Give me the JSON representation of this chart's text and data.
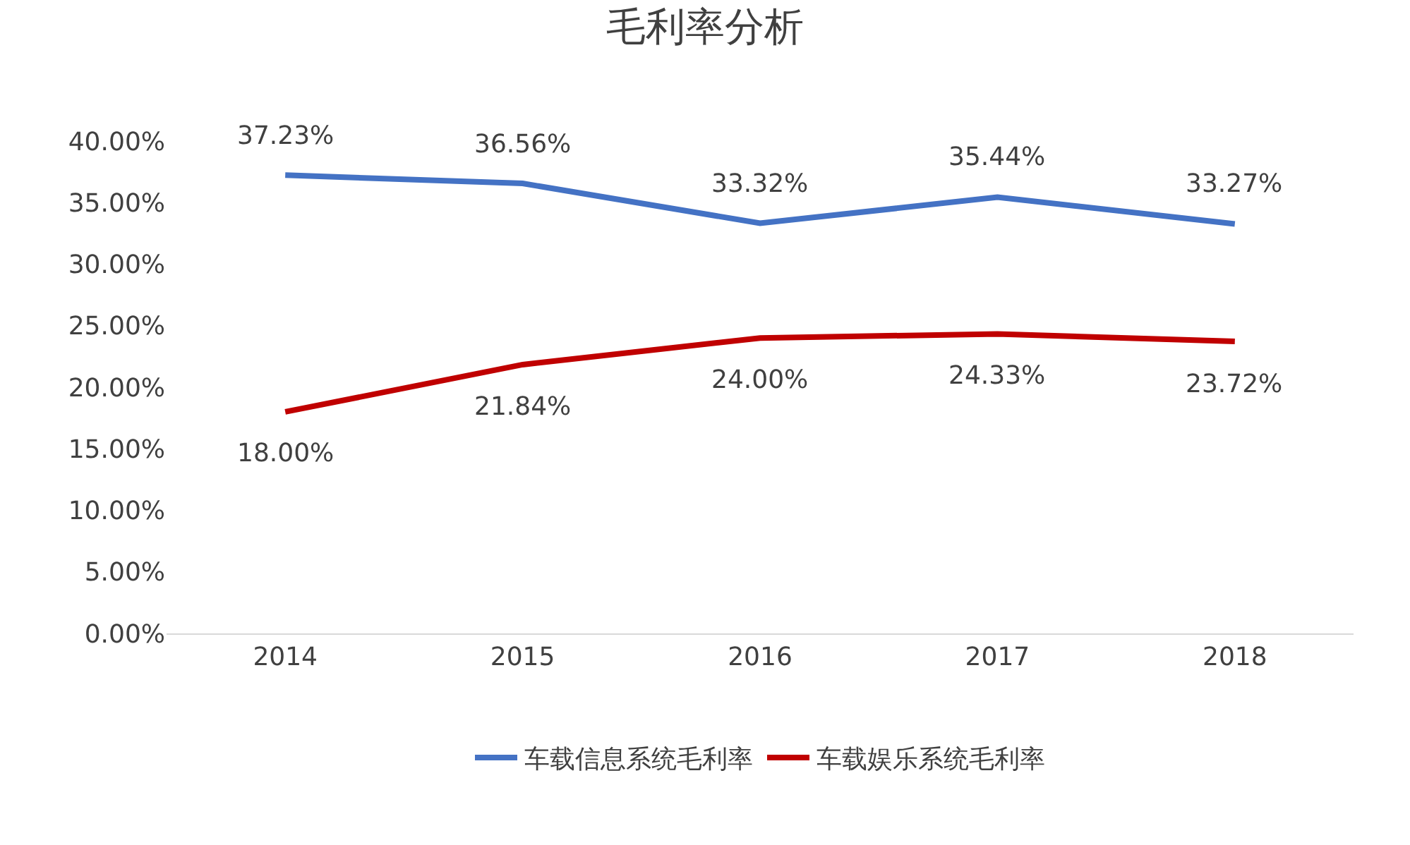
{
  "chart_data": {
    "type": "line",
    "title": "毛利率分析",
    "categories": [
      "2014",
      "2015",
      "2016",
      "2017",
      "2018"
    ],
    "series": [
      {
        "name": "车载信息系统毛利率",
        "color": "#4472c4",
        "values": [
          37.23,
          36.56,
          33.32,
          35.44,
          33.27
        ],
        "value_labels": [
          "37.23%",
          "36.56%",
          "33.32%",
          "35.44%",
          "33.27%"
        ]
      },
      {
        "name": "车载娱乐系统毛利率",
        "color": "#c00000",
        "values": [
          18.0,
          21.84,
          24.0,
          24.33,
          23.72
        ],
        "value_labels": [
          "18.00%",
          "21.84%",
          "24.00%",
          "24.33%",
          "23.72%"
        ]
      }
    ],
    "ylim": [
      0,
      40
    ],
    "yticks": [
      {
        "value": 0,
        "label": "0.00%"
      },
      {
        "value": 5,
        "label": "5.00%"
      },
      {
        "value": 10,
        "label": "10.00%"
      },
      {
        "value": 15,
        "label": "15.00%"
      },
      {
        "value": 20,
        "label": "20.00%"
      },
      {
        "value": 25,
        "label": "25.00%"
      },
      {
        "value": 30,
        "label": "30.00%"
      },
      {
        "value": 35,
        "label": "35.00%"
      },
      {
        "value": 40,
        "label": "40.00%"
      }
    ],
    "grid": false,
    "legend": "bottom",
    "marker": "none",
    "line_style": "solid"
  }
}
